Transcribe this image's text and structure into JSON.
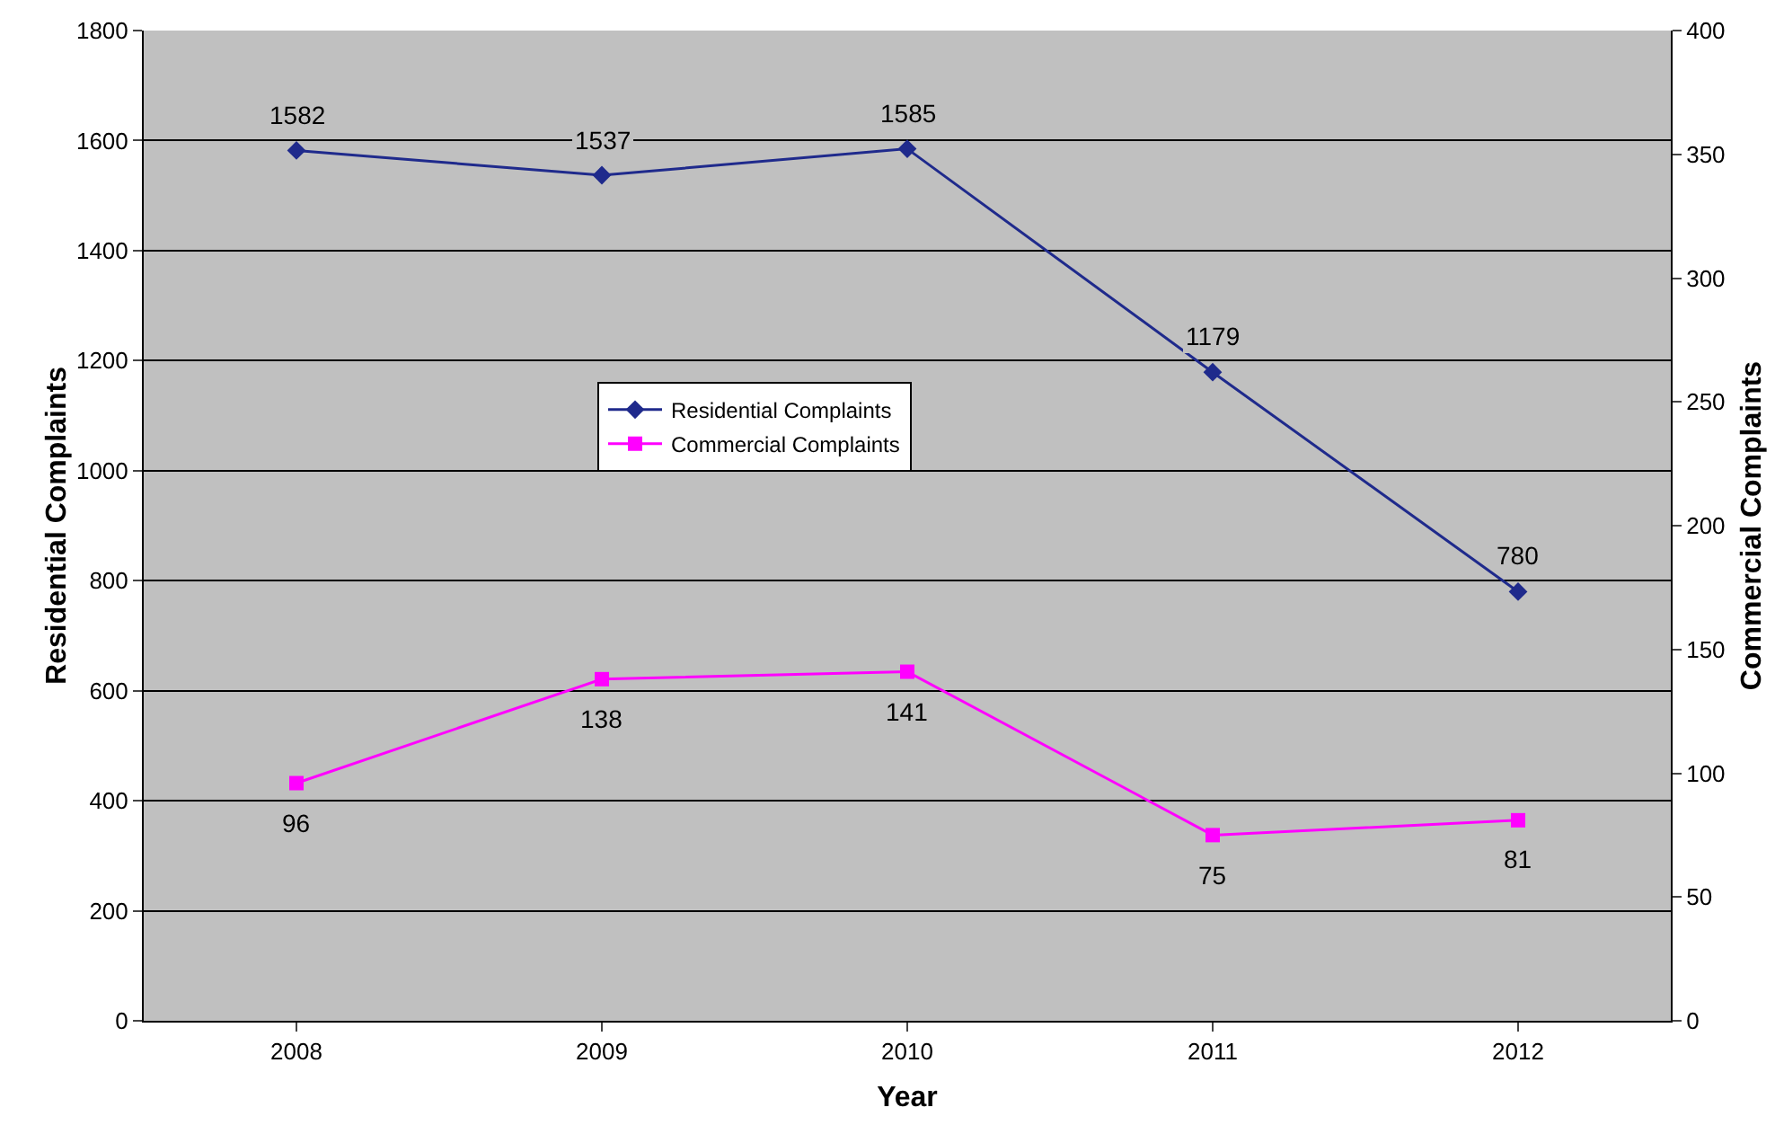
{
  "chart_data": {
    "type": "line",
    "categories": [
      "2008",
      "2009",
      "2010",
      "2011",
      "2012"
    ],
    "series": [
      {
        "name": "Residential Complaints",
        "color": "#1f2a8c",
        "marker": "diamond",
        "values": [
          1582,
          1537,
          1585,
          1179,
          780
        ]
      },
      {
        "name": "Commercial Complaints",
        "color": "#ff00ff",
        "marker": "square",
        "axis": "y2",
        "values": [
          96,
          138,
          141,
          75,
          81
        ]
      }
    ],
    "xlabel": "Year",
    "ylabel": "Residential Complaints",
    "y2label": "Commercial Complaints",
    "ylim": [
      0,
      1800
    ],
    "yticks": [
      0,
      200,
      400,
      600,
      800,
      1000,
      1200,
      1400,
      1600,
      1800
    ],
    "y2lim": [
      0,
      400
    ],
    "y2ticks": [
      0,
      50,
      100,
      150,
      200,
      250,
      300,
      350,
      400
    ],
    "grid": "y",
    "legend": "center",
    "data_labels": true,
    "line_style": "solid"
  }
}
